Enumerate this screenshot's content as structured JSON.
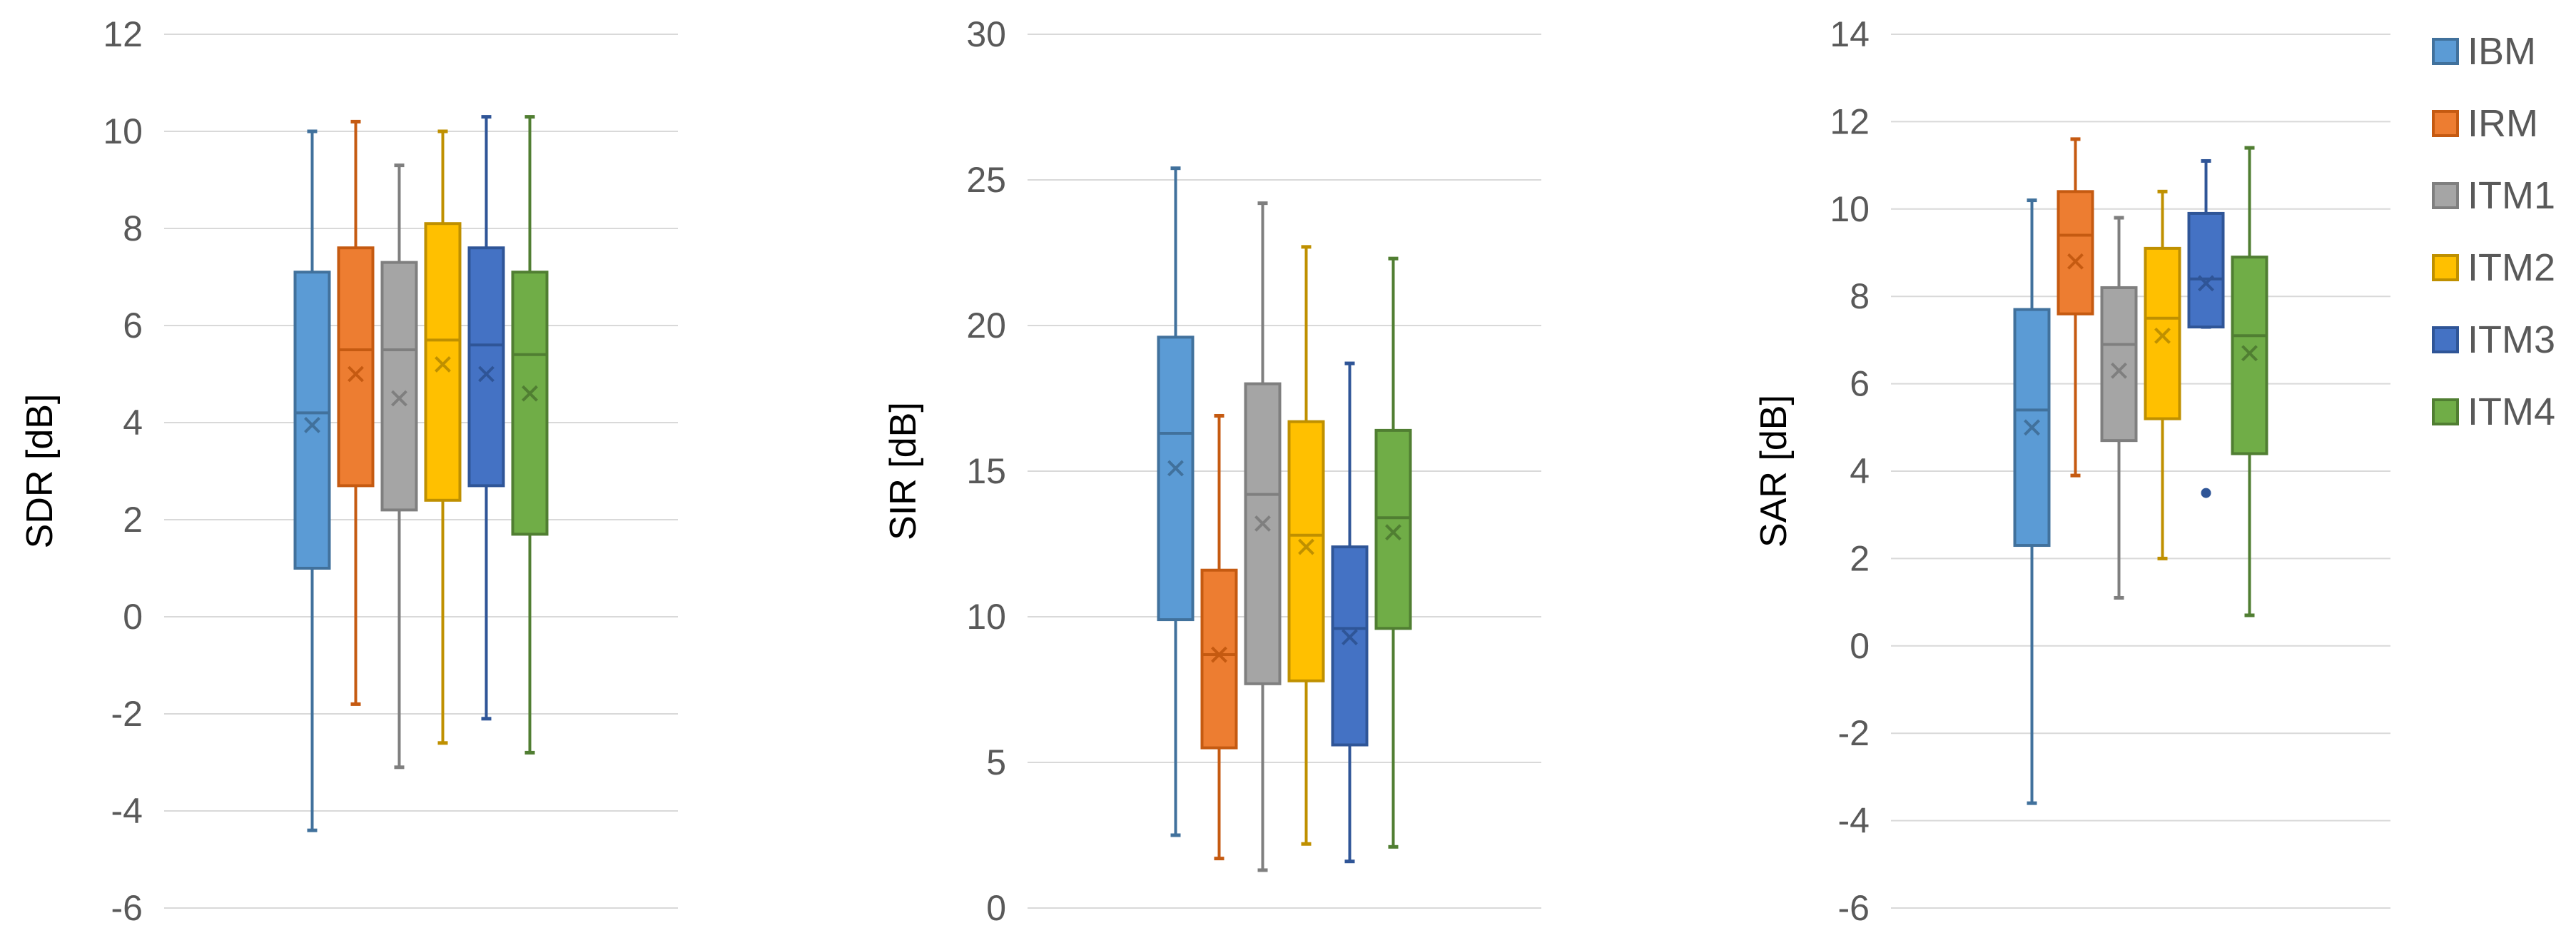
{
  "chart_data": [
    {
      "type": "box",
      "ylabel": "SDR [dB]",
      "ylim": [
        -6,
        12
      ],
      "yticks": [
        -6,
        -4,
        -2,
        0,
        2,
        4,
        6,
        8,
        10,
        12
      ],
      "ytick_labels": [
        "-6",
        "-4",
        "-2",
        "0",
        "2",
        "4",
        "6",
        "8",
        "10",
        "12"
      ],
      "grid": true,
      "series": [
        {
          "name": "IBM",
          "min": -4.4,
          "q1": 1.0,
          "median": 4.2,
          "q3": 7.1,
          "max": 10.0,
          "mean": 3.95
        },
        {
          "name": "IRM",
          "min": -1.8,
          "q1": 2.7,
          "median": 5.5,
          "q3": 7.6,
          "max": 10.2,
          "mean": 5.0
        },
        {
          "name": "ITM1",
          "min": -3.1,
          "q1": 2.2,
          "median": 5.5,
          "q3": 7.3,
          "max": 9.3,
          "mean": 4.5
        },
        {
          "name": "ITM2",
          "min": -2.6,
          "q1": 2.4,
          "median": 5.7,
          "q3": 8.1,
          "max": 10.0,
          "mean": 5.2
        },
        {
          "name": "ITM3",
          "min": -2.1,
          "q1": 2.7,
          "median": 5.6,
          "q3": 7.6,
          "max": 10.3,
          "mean": 5.0
        },
        {
          "name": "ITM4",
          "min": -2.8,
          "q1": 1.7,
          "median": 5.4,
          "q3": 7.1,
          "max": 10.3,
          "mean": 4.6
        }
      ]
    },
    {
      "type": "box",
      "ylabel": "SIR [dB]",
      "ylim": [
        0,
        30
      ],
      "yticks": [
        0,
        5,
        10,
        15,
        20,
        25,
        30
      ],
      "ytick_labels": [
        "0",
        "5",
        "10",
        "15",
        "20",
        "25",
        "30"
      ],
      "grid": true,
      "series": [
        {
          "name": "IBM",
          "min": 2.5,
          "q1": 9.9,
          "median": 16.3,
          "q3": 19.6,
          "max": 25.4,
          "mean": 15.1
        },
        {
          "name": "IRM",
          "min": 1.7,
          "q1": 5.5,
          "median": 8.7,
          "q3": 11.6,
          "max": 16.9,
          "mean": 8.7
        },
        {
          "name": "ITM1",
          "min": 1.3,
          "q1": 7.7,
          "median": 14.2,
          "q3": 18.0,
          "max": 24.2,
          "mean": 13.2
        },
        {
          "name": "ITM2",
          "min": 2.2,
          "q1": 7.8,
          "median": 12.8,
          "q3": 16.7,
          "max": 22.7,
          "mean": 12.4
        },
        {
          "name": "ITM3",
          "min": 1.6,
          "q1": 5.6,
          "median": 9.6,
          "q3": 12.4,
          "max": 18.7,
          "mean": 9.3
        },
        {
          "name": "ITM4",
          "min": 2.1,
          "q1": 9.6,
          "median": 13.4,
          "q3": 16.4,
          "max": 22.3,
          "mean": 12.9
        }
      ]
    },
    {
      "type": "box",
      "ylabel": "SAR [dB]",
      "ylim": [
        -6,
        14
      ],
      "yticks": [
        -6,
        -4,
        -2,
        0,
        2,
        4,
        6,
        8,
        10,
        12,
        14
      ],
      "ytick_labels": [
        "-6",
        "-4",
        "-2",
        "0",
        "2",
        "4",
        "6",
        "8",
        "10",
        "12",
        "14"
      ],
      "grid": true,
      "legend_position": "right",
      "series": [
        {
          "name": "IBM",
          "min": -3.6,
          "q1": 2.3,
          "median": 5.4,
          "q3": 7.7,
          "max": 10.2,
          "mean": 5.0
        },
        {
          "name": "IRM",
          "min": 3.9,
          "q1": 7.6,
          "median": 9.4,
          "q3": 10.4,
          "max": 11.6,
          "mean": 8.8
        },
        {
          "name": "ITM1",
          "min": 1.1,
          "q1": 4.7,
          "median": 6.9,
          "q3": 8.2,
          "max": 9.8,
          "mean": 6.3
        },
        {
          "name": "ITM2",
          "min": 2.0,
          "q1": 5.2,
          "median": 7.5,
          "q3": 9.1,
          "max": 10.4,
          "mean": 7.1
        },
        {
          "name": "ITM3",
          "min": 7.3,
          "q1": 7.3,
          "median": 8.4,
          "q3": 9.9,
          "max": 11.1,
          "mean": 8.3,
          "outliers": [
            3.5
          ]
        },
        {
          "name": "ITM4",
          "min": 0.7,
          "q1": 4.4,
          "median": 7.1,
          "q3": 8.9,
          "max": 11.4,
          "mean": 6.7
        }
      ]
    }
  ],
  "legend": {
    "items": [
      {
        "label": "IBM",
        "fill": "#5B9BD5",
        "stroke": "#41719C"
      },
      {
        "label": "IRM",
        "fill": "#ED7D31",
        "stroke": "#C55A11"
      },
      {
        "label": "ITM1",
        "fill": "#A5A5A5",
        "stroke": "#7F7F7F"
      },
      {
        "label": "ITM2",
        "fill": "#FFC000",
        "stroke": "#BF9000"
      },
      {
        "label": "ITM3",
        "fill": "#4472C4",
        "stroke": "#2F5597"
      },
      {
        "label": "ITM4",
        "fill": "#70AD47",
        "stroke": "#507E32"
      }
    ]
  },
  "colors": {
    "grid": "#D9D9D9",
    "tick_text": "#595959"
  }
}
